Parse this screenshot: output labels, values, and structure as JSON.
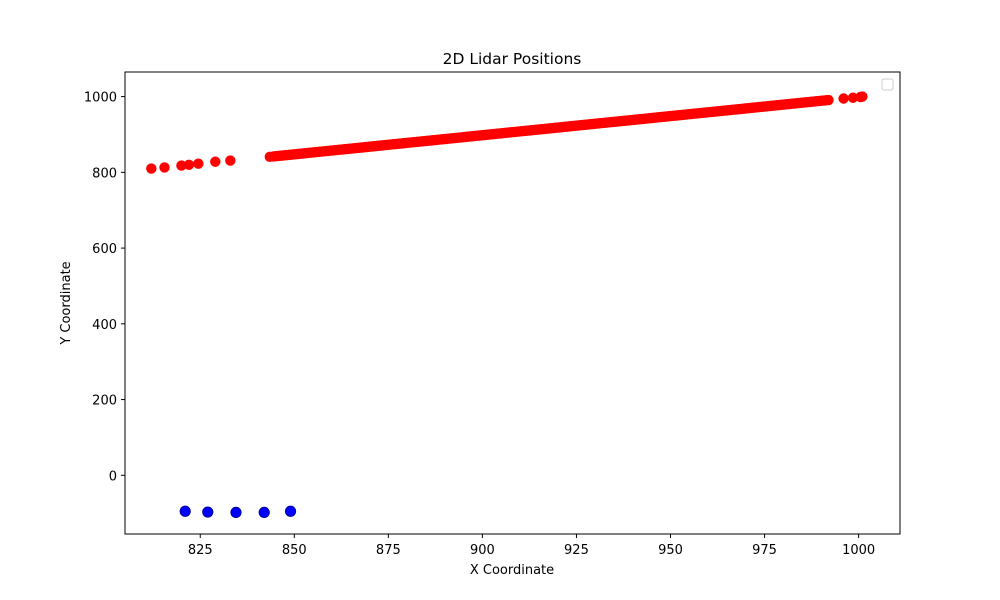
{
  "chart_data": {
    "type": "scatter",
    "title": "2D Lidar Positions",
    "xlabel": "X Coordinate",
    "ylabel": "Y Coordinate",
    "xlim": [
      805,
      1011
    ],
    "ylim": [
      -155,
      1065
    ],
    "xticks": [
      825,
      850,
      875,
      900,
      925,
      950,
      975,
      1000
    ],
    "yticks": [
      0,
      200,
      400,
      600,
      800,
      1000
    ],
    "grid": false,
    "legend": {
      "placement": "top-right",
      "entries": []
    },
    "series": [
      {
        "color": "#ff0000",
        "marker": "circle",
        "points": [
          [
            812,
            810
          ],
          [
            815.5,
            813
          ],
          [
            820,
            818
          ],
          [
            822,
            820
          ],
          [
            824.5,
            823
          ],
          [
            829,
            828
          ],
          [
            833,
            831
          ],
          [
            843.5,
            841
          ],
          [
            1001,
            1000
          ]
        ],
        "dense_segment": {
          "x_start": 844.5,
          "y_start": 842,
          "x_end": 992,
          "y_end": 991,
          "count": 300
        },
        "tail_points": [
          [
            996,
            995
          ],
          [
            998.5,
            997
          ],
          [
            1000.5,
            999
          ]
        ]
      },
      {
        "color": "#0000ff",
        "marker": "circle",
        "points": [
          [
            821,
            -95
          ],
          [
            827,
            -97
          ],
          [
            834.5,
            -98
          ],
          [
            842,
            -98
          ],
          [
            849,
            -95
          ]
        ]
      }
    ]
  }
}
